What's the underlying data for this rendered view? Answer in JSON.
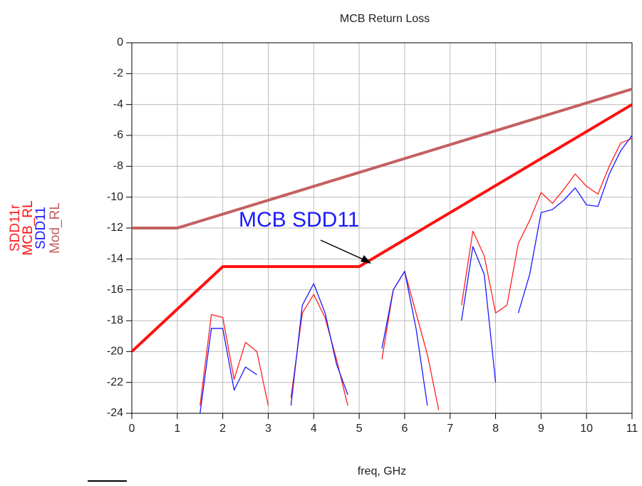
{
  "chart_data": {
    "type": "line",
    "title": "MCB Return Loss",
    "xlabel": "freq, GHz",
    "annotation": "MCB SDD11",
    "xlim": [
      0,
      11
    ],
    "xticks": [
      0,
      1,
      2,
      3,
      4,
      5,
      6,
      7,
      8,
      9,
      10,
      11
    ],
    "ylim": [
      -24,
      0
    ],
    "yticks": [
      0,
      -2,
      -4,
      -6,
      -8,
      -10,
      -12,
      -14,
      -16,
      -18,
      -20,
      -22,
      -24
    ],
    "grid": true,
    "series": [
      {
        "name": "SDD11r",
        "color": "#ff2020",
        "width": 1.3,
        "x": [
          0,
          0.25,
          0.5,
          0.75,
          1,
          1.25,
          1.5,
          1.75,
          2,
          2.25,
          2.5,
          2.75,
          3,
          3.25,
          3.5,
          3.75,
          4,
          4.25,
          4.5,
          4.75,
          5,
          5.25,
          5.5,
          5.75,
          6,
          6.25,
          6.5,
          6.75,
          7,
          7.25,
          7.5,
          7.75,
          8,
          8.25,
          8.5,
          8.75,
          9,
          9.25,
          9.5,
          9.75,
          10,
          10.25,
          10.5,
          10.75,
          11
        ],
        "values": [
          null,
          null,
          null,
          null,
          null,
          null,
          -23.5,
          -17.6,
          -17.8,
          -21.8,
          -19.4,
          -20,
          -23.5,
          null,
          -23,
          -17.5,
          -16.3,
          -17.8,
          -20.5,
          -23.5,
          null,
          null,
          -20.5,
          -16,
          -14.8,
          -17.5,
          -20.2,
          -23.8,
          null,
          -17,
          -12.2,
          -13.8,
          -17.5,
          -17,
          -13,
          -11.5,
          -9.7,
          -10.4,
          -9.5,
          -8.5,
          -9.3,
          -9.8,
          -8,
          -6.5,
          -6.2
        ]
      },
      {
        "name": "MCB_RL",
        "color": "#ff1010",
        "width": 4,
        "x": [
          0,
          2,
          5,
          11
        ],
        "values": [
          -20,
          -14.5,
          -14.5,
          -4
        ]
      },
      {
        "name": "SDD11",
        "color": "#1a1aff",
        "width": 1.3,
        "x": [
          0,
          0.25,
          0.5,
          0.75,
          1,
          1.25,
          1.5,
          1.75,
          2,
          2.25,
          2.5,
          2.75,
          3,
          3.25,
          3.5,
          3.75,
          4,
          4.25,
          4.5,
          4.75,
          5,
          5.25,
          5.5,
          5.75,
          6,
          6.25,
          6.5,
          6.75,
          7,
          7.25,
          7.5,
          7.75,
          8,
          8.25,
          8.5,
          8.75,
          9,
          9.25,
          9.5,
          9.75,
          10,
          10.25,
          10.5,
          10.75,
          11
        ],
        "values": [
          null,
          null,
          null,
          null,
          null,
          null,
          -24,
          -18.5,
          -18.5,
          -22.5,
          -21,
          -21.5,
          null,
          null,
          -23.5,
          -17,
          -15.6,
          -17.5,
          -20.8,
          -22.8,
          null,
          null,
          -19.8,
          -16,
          -14.8,
          -18.5,
          -23.5,
          null,
          null,
          -18,
          -13.2,
          -15,
          -22,
          null,
          -17.5,
          -15,
          -11,
          -10.8,
          -10.2,
          -9.4,
          -10.5,
          -10.6,
          -8.5,
          -7,
          -6
        ]
      },
      {
        "name": "Mod_RL",
        "color": "#c46060",
        "width": 4,
        "x": [
          0,
          1,
          11
        ],
        "values": [
          -12,
          -12,
          -3
        ]
      }
    ]
  }
}
